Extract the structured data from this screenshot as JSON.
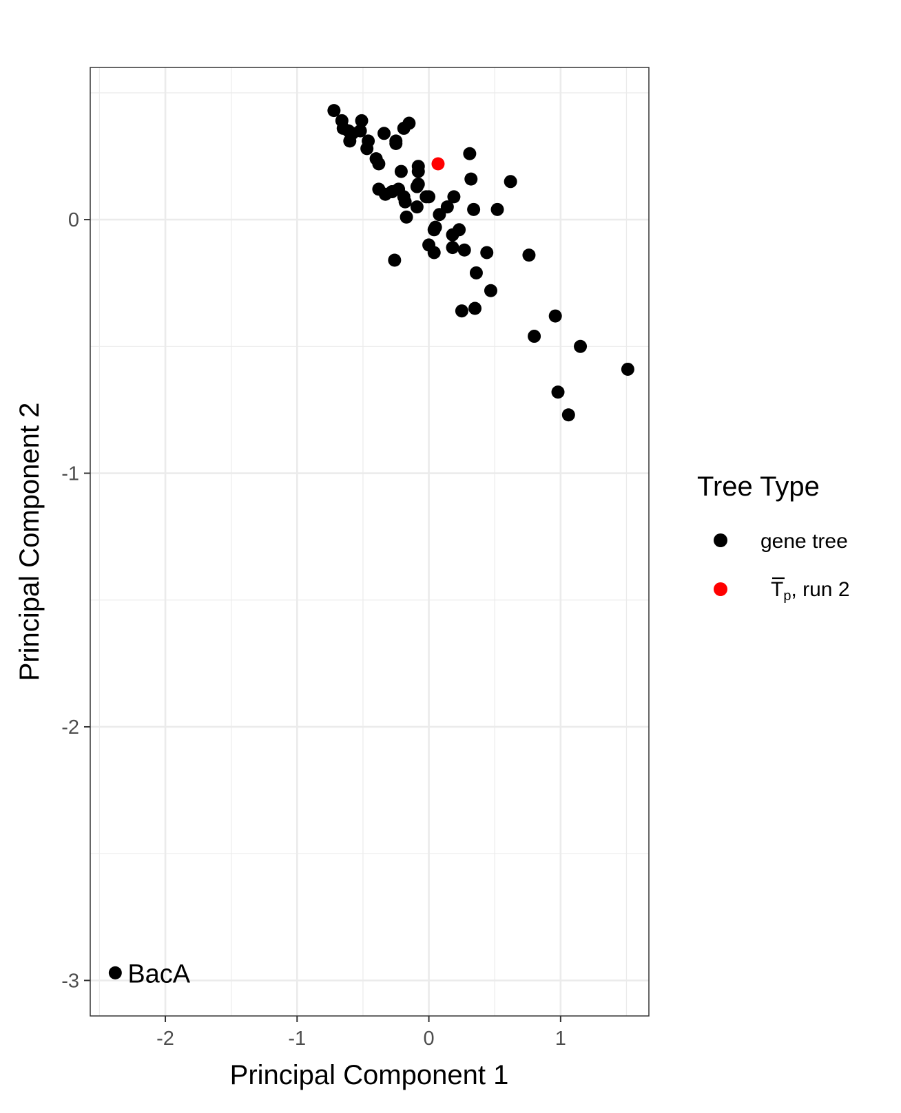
{
  "chart_data": {
    "type": "scatter",
    "title": "",
    "xlabel": "Principal Component 1",
    "ylabel": "Principal Component 2",
    "xlim": [
      -2.57,
      1.67
    ],
    "ylim": [
      -3.14,
      0.6
    ],
    "x_ticks": [
      -2,
      -1,
      0,
      1
    ],
    "x_tick_labels": [
      "-2",
      "-1",
      "0",
      "1"
    ],
    "y_ticks": [
      0,
      -1,
      -2,
      -3
    ],
    "y_tick_labels": [
      "0",
      "-1",
      "-2",
      "-3"
    ],
    "grid": true,
    "legend": {
      "title": "Tree Type",
      "position": "right",
      "entries": [
        {
          "key": "gene",
          "label": "gene tree",
          "color": "#000000"
        },
        {
          "key": "tp",
          "label_main": "T",
          "label_sub": "p",
          "label_rest": ", run 2",
          "color": "#ff0000"
        }
      ]
    },
    "series": [
      {
        "name": "gene tree",
        "color": "#000000",
        "points": [
          [
            -0.72,
            0.43
          ],
          [
            -0.66,
            0.39
          ],
          [
            -0.65,
            0.36
          ],
          [
            -0.61,
            0.35
          ],
          [
            -0.58,
            0.34
          ],
          [
            -0.6,
            0.31
          ],
          [
            -0.51,
            0.39
          ],
          [
            -0.52,
            0.35
          ],
          [
            -0.46,
            0.31
          ],
          [
            -0.47,
            0.28
          ],
          [
            -0.34,
            0.34
          ],
          [
            -0.25,
            0.31
          ],
          [
            -0.25,
            0.3
          ],
          [
            -0.19,
            0.36
          ],
          [
            -0.15,
            0.38
          ],
          [
            -0.4,
            0.24
          ],
          [
            -0.38,
            0.22
          ],
          [
            -0.21,
            0.19
          ],
          [
            -0.08,
            0.21
          ],
          [
            -0.08,
            0.19
          ],
          [
            -0.38,
            0.12
          ],
          [
            -0.33,
            0.1
          ],
          [
            -0.28,
            0.11
          ],
          [
            -0.23,
            0.12
          ],
          [
            -0.19,
            0.09
          ],
          [
            -0.18,
            0.07
          ],
          [
            -0.09,
            0.13
          ],
          [
            -0.08,
            0.14
          ],
          [
            -0.09,
            0.05
          ],
          [
            -0.02,
            0.09
          ],
          [
            0.0,
            0.09
          ],
          [
            -0.17,
            0.01
          ],
          [
            0.08,
            0.02
          ],
          [
            0.14,
            0.05
          ],
          [
            0.19,
            0.09
          ],
          [
            0.34,
            0.04
          ],
          [
            0.52,
            0.04
          ],
          [
            0.31,
            0.26
          ],
          [
            0.32,
            0.16
          ],
          [
            0.62,
            0.15
          ],
          [
            0.04,
            -0.04
          ],
          [
            0.05,
            -0.03
          ],
          [
            0.18,
            -0.06
          ],
          [
            0.23,
            -0.04
          ],
          [
            0.0,
            -0.1
          ],
          [
            0.04,
            -0.13
          ],
          [
            0.18,
            -0.11
          ],
          [
            0.27,
            -0.12
          ],
          [
            0.44,
            -0.13
          ],
          [
            0.76,
            -0.14
          ],
          [
            0.36,
            -0.21
          ],
          [
            0.47,
            -0.28
          ],
          [
            0.25,
            -0.36
          ],
          [
            0.35,
            -0.35
          ],
          [
            -0.26,
            -0.16
          ],
          [
            0.96,
            -0.38
          ],
          [
            0.8,
            -0.46
          ],
          [
            1.15,
            -0.5
          ],
          [
            1.51,
            -0.59
          ],
          [
            0.98,
            -0.68
          ],
          [
            1.06,
            -0.77
          ],
          [
            -2.38,
            -2.97
          ]
        ]
      },
      {
        "name": "Tp, run 2",
        "color": "#ff0000",
        "points": [
          [
            0.07,
            0.22
          ]
        ]
      }
    ],
    "annotations": [
      {
        "text": "BacA",
        "x": -2.38,
        "y": -2.97
      }
    ]
  }
}
